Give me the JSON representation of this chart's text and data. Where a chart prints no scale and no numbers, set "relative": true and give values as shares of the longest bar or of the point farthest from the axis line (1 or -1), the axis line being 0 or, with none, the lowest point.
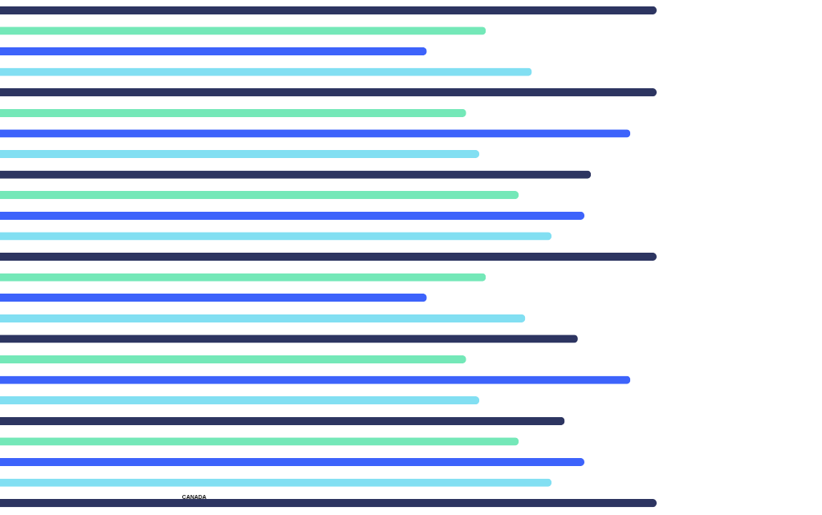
{
  "chart_data": {
    "type": "bar",
    "orientation": "horizontal",
    "relative": true,
    "categories": [
      null,
      null,
      null,
      null,
      null,
      null,
      null,
      null,
      null,
      null,
      null,
      null,
      null,
      null,
      null,
      null,
      null,
      null,
      null,
      null,
      null,
      null,
      null,
      null,
      null
    ],
    "values": [
      1,
      0.74,
      0.65,
      0.81,
      1,
      0.71,
      0.96,
      0.73,
      0.9,
      0.79,
      0.89,
      0.84,
      1,
      0.74,
      0.65,
      0.8,
      0.88,
      0.71,
      0.96,
      0.73,
      0.86,
      0.79,
      0.89,
      0.84,
      1
    ],
    "colors": [
      "#2d3561",
      "#74e8b8",
      "#3d63fb",
      "#82dff2",
      "#2d3561",
      "#74e8b8",
      "#3d63fb",
      "#82dff2",
      "#2d3561",
      "#74e8b8",
      "#3d63fb",
      "#82dff2",
      "#2d3561",
      "#74e8b8",
      "#3d63fb",
      "#82dff2",
      "#2d3561",
      "#74e8b8",
      "#3d63fb",
      "#82dff2",
      "#2d3561",
      "#74e8b8",
      "#3d63fb",
      "#82dff2",
      "#2d3561"
    ],
    "annotations": [
      "CANADA"
    ]
  }
}
